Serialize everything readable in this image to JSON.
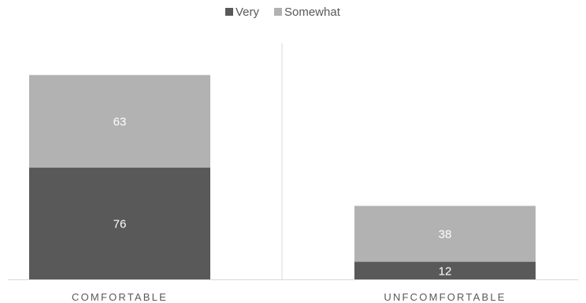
{
  "chart_data": {
    "type": "bar",
    "stacked": true,
    "categories": [
      "COMFORTABLE",
      "UNFCOMFORTABLE"
    ],
    "series": [
      {
        "name": "Very",
        "values": [
          76,
          12
        ],
        "color": "#595959"
      },
      {
        "name": "Somewhat",
        "values": [
          63,
          38
        ],
        "color": "#b2b2b2"
      }
    ],
    "ylim": [
      0,
      140
    ],
    "legend_position": "top-center",
    "grid": false,
    "divider_between_categories": true,
    "colors": {
      "axis": "#d9d9d9",
      "label_text": "#595959",
      "data_label": "#ffffff"
    }
  }
}
